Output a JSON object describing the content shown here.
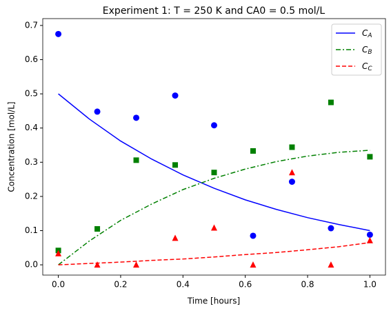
{
  "chart_data": {
    "type": "line",
    "title": "Experiment 1: T = 250 K and CA0 = 0.5 mol/L",
    "xlabel": "Time [hours]",
    "ylabel": "Concentration [mol/L]",
    "xlim": [
      -0.05,
      1.05
    ],
    "ylim": [
      -0.03,
      0.72
    ],
    "xticks": [
      {
        "value": 0,
        "label": "0.0"
      },
      {
        "value": 0.2,
        "label": "0.2"
      },
      {
        "value": 0.4,
        "label": "0.4"
      },
      {
        "value": 0.6,
        "label": "0.6"
      },
      {
        "value": 0.8,
        "label": "0.8"
      },
      {
        "value": 1,
        "label": "1.0"
      }
    ],
    "yticks": [
      {
        "value": 0,
        "label": "0.0"
      },
      {
        "value": 0.1,
        "label": "0.1"
      },
      {
        "value": 0.2,
        "label": "0.2"
      },
      {
        "value": 0.3,
        "label": "0.3"
      },
      {
        "value": 0.4,
        "label": "0.4"
      },
      {
        "value": 0.5,
        "label": "0.5"
      },
      {
        "value": 0.6,
        "label": "0.6"
      },
      {
        "value": 0.7,
        "label": "0.7"
      }
    ],
    "legend": "upper right",
    "x": [
      0,
      0.1,
      0.2,
      0.3,
      0.4,
      0.5,
      0.6,
      0.7,
      0.8,
      0.9,
      1
    ],
    "series": [
      {
        "name": "CA",
        "color": "#0000ff",
        "dash": "solid",
        "values": [
          0.5,
          0.426,
          0.362,
          0.309,
          0.263,
          0.224,
          0.19,
          0.162,
          0.138,
          0.118,
          0.1
        ]
      },
      {
        "name": "CB",
        "color": "#008000",
        "dash": "dashdot",
        "values": [
          0,
          0.07,
          0.13,
          0.178,
          0.22,
          0.253,
          0.28,
          0.302,
          0.318,
          0.329,
          0.335
        ]
      },
      {
        "name": "CC",
        "color": "#ff0000",
        "dash": "dashed",
        "values": [
          0,
          0.004,
          0.008,
          0.013,
          0.017,
          0.023,
          0.03,
          0.036,
          0.044,
          0.053,
          0.065
        ]
      }
    ],
    "point_x": [
      0,
      0.125,
      0.25,
      0.375,
      0.5,
      0.625,
      0.75,
      0.875,
      1
    ],
    "points": [
      {
        "color": "#0000ff",
        "marker": "circle",
        "values": [
          0.675,
          0.448,
          0.43,
          0.495,
          0.408,
          0.085,
          0.243,
          0.107,
          0.088
        ]
      },
      {
        "color": "#008000",
        "marker": "square",
        "values": [
          0.042,
          0.105,
          0.306,
          0.292,
          0.27,
          0.333,
          0.344,
          0.475,
          0.316
        ]
      },
      {
        "color": "#ff0000",
        "marker": "triangle",
        "values": [
          0.033,
          0,
          0,
          0.078,
          0.108,
          0,
          0.27,
          0,
          0.071
        ]
      }
    ]
  }
}
